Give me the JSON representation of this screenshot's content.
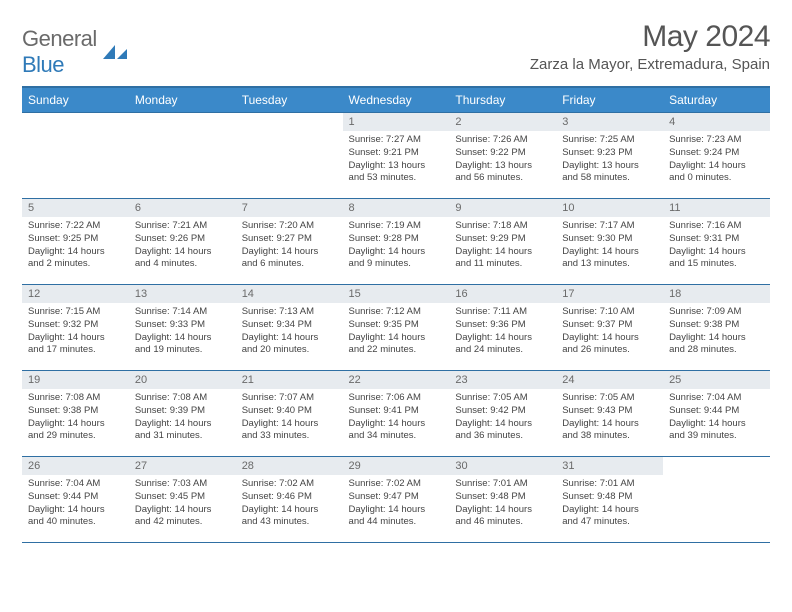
{
  "logo": {
    "word1": "General",
    "word2": "Blue"
  },
  "title": "May 2024",
  "location": "Zarza la Mayor, Extremadura, Spain",
  "colors": {
    "header_bg": "#3b89c9",
    "border": "#2f6fa3",
    "daynum_bg": "#e7ebef",
    "text": "#444444",
    "title_text": "#555555"
  },
  "weekdays": [
    "Sunday",
    "Monday",
    "Tuesday",
    "Wednesday",
    "Thursday",
    "Friday",
    "Saturday"
  ],
  "weeks": [
    [
      null,
      null,
      null,
      {
        "n": "1",
        "sunrise": "7:27 AM",
        "sunset": "9:21 PM",
        "daylight": "13 hours and 53 minutes."
      },
      {
        "n": "2",
        "sunrise": "7:26 AM",
        "sunset": "9:22 PM",
        "daylight": "13 hours and 56 minutes."
      },
      {
        "n": "3",
        "sunrise": "7:25 AM",
        "sunset": "9:23 PM",
        "daylight": "13 hours and 58 minutes."
      },
      {
        "n": "4",
        "sunrise": "7:23 AM",
        "sunset": "9:24 PM",
        "daylight": "14 hours and 0 minutes."
      }
    ],
    [
      {
        "n": "5",
        "sunrise": "7:22 AM",
        "sunset": "9:25 PM",
        "daylight": "14 hours and 2 minutes."
      },
      {
        "n": "6",
        "sunrise": "7:21 AM",
        "sunset": "9:26 PM",
        "daylight": "14 hours and 4 minutes."
      },
      {
        "n": "7",
        "sunrise": "7:20 AM",
        "sunset": "9:27 PM",
        "daylight": "14 hours and 6 minutes."
      },
      {
        "n": "8",
        "sunrise": "7:19 AM",
        "sunset": "9:28 PM",
        "daylight": "14 hours and 9 minutes."
      },
      {
        "n": "9",
        "sunrise": "7:18 AM",
        "sunset": "9:29 PM",
        "daylight": "14 hours and 11 minutes."
      },
      {
        "n": "10",
        "sunrise": "7:17 AM",
        "sunset": "9:30 PM",
        "daylight": "14 hours and 13 minutes."
      },
      {
        "n": "11",
        "sunrise": "7:16 AM",
        "sunset": "9:31 PM",
        "daylight": "14 hours and 15 minutes."
      }
    ],
    [
      {
        "n": "12",
        "sunrise": "7:15 AM",
        "sunset": "9:32 PM",
        "daylight": "14 hours and 17 minutes."
      },
      {
        "n": "13",
        "sunrise": "7:14 AM",
        "sunset": "9:33 PM",
        "daylight": "14 hours and 19 minutes."
      },
      {
        "n": "14",
        "sunrise": "7:13 AM",
        "sunset": "9:34 PM",
        "daylight": "14 hours and 20 minutes."
      },
      {
        "n": "15",
        "sunrise": "7:12 AM",
        "sunset": "9:35 PM",
        "daylight": "14 hours and 22 minutes."
      },
      {
        "n": "16",
        "sunrise": "7:11 AM",
        "sunset": "9:36 PM",
        "daylight": "14 hours and 24 minutes."
      },
      {
        "n": "17",
        "sunrise": "7:10 AM",
        "sunset": "9:37 PM",
        "daylight": "14 hours and 26 minutes."
      },
      {
        "n": "18",
        "sunrise": "7:09 AM",
        "sunset": "9:38 PM",
        "daylight": "14 hours and 28 minutes."
      }
    ],
    [
      {
        "n": "19",
        "sunrise": "7:08 AM",
        "sunset": "9:38 PM",
        "daylight": "14 hours and 29 minutes."
      },
      {
        "n": "20",
        "sunrise": "7:08 AM",
        "sunset": "9:39 PM",
        "daylight": "14 hours and 31 minutes."
      },
      {
        "n": "21",
        "sunrise": "7:07 AM",
        "sunset": "9:40 PM",
        "daylight": "14 hours and 33 minutes."
      },
      {
        "n": "22",
        "sunrise": "7:06 AM",
        "sunset": "9:41 PM",
        "daylight": "14 hours and 34 minutes."
      },
      {
        "n": "23",
        "sunrise": "7:05 AM",
        "sunset": "9:42 PM",
        "daylight": "14 hours and 36 minutes."
      },
      {
        "n": "24",
        "sunrise": "7:05 AM",
        "sunset": "9:43 PM",
        "daylight": "14 hours and 38 minutes."
      },
      {
        "n": "25",
        "sunrise": "7:04 AM",
        "sunset": "9:44 PM",
        "daylight": "14 hours and 39 minutes."
      }
    ],
    [
      {
        "n": "26",
        "sunrise": "7:04 AM",
        "sunset": "9:44 PM",
        "daylight": "14 hours and 40 minutes."
      },
      {
        "n": "27",
        "sunrise": "7:03 AM",
        "sunset": "9:45 PM",
        "daylight": "14 hours and 42 minutes."
      },
      {
        "n": "28",
        "sunrise": "7:02 AM",
        "sunset": "9:46 PM",
        "daylight": "14 hours and 43 minutes."
      },
      {
        "n": "29",
        "sunrise": "7:02 AM",
        "sunset": "9:47 PM",
        "daylight": "14 hours and 44 minutes."
      },
      {
        "n": "30",
        "sunrise": "7:01 AM",
        "sunset": "9:48 PM",
        "daylight": "14 hours and 46 minutes."
      },
      {
        "n": "31",
        "sunrise": "7:01 AM",
        "sunset": "9:48 PM",
        "daylight": "14 hours and 47 minutes."
      },
      null
    ]
  ],
  "labels": {
    "sunrise": "Sunrise:",
    "sunset": "Sunset:",
    "daylight": "Daylight:"
  }
}
